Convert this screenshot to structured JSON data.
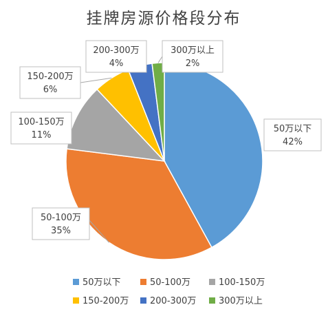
{
  "chart_data": {
    "type": "pie",
    "title": "挂牌房源价格段分布",
    "slices": [
      {
        "name": "50万以下",
        "value": 42,
        "label": "42%",
        "color": "#5b9bd5"
      },
      {
        "name": "50-100万",
        "value": 35,
        "label": "35%",
        "color": "#ed7d31"
      },
      {
        "name": "100-150万",
        "value": 11,
        "label": "11%",
        "color": "#a5a5a5"
      },
      {
        "name": "150-200万",
        "value": 6,
        "label": "6%",
        "color": "#ffc000"
      },
      {
        "name": "200-300万",
        "value": 4,
        "label": "4%",
        "color": "#4472c4"
      },
      {
        "name": "300万以上",
        "value": 2,
        "label": "2%",
        "color": "#70ad47"
      }
    ],
    "legend_position": "bottom"
  }
}
